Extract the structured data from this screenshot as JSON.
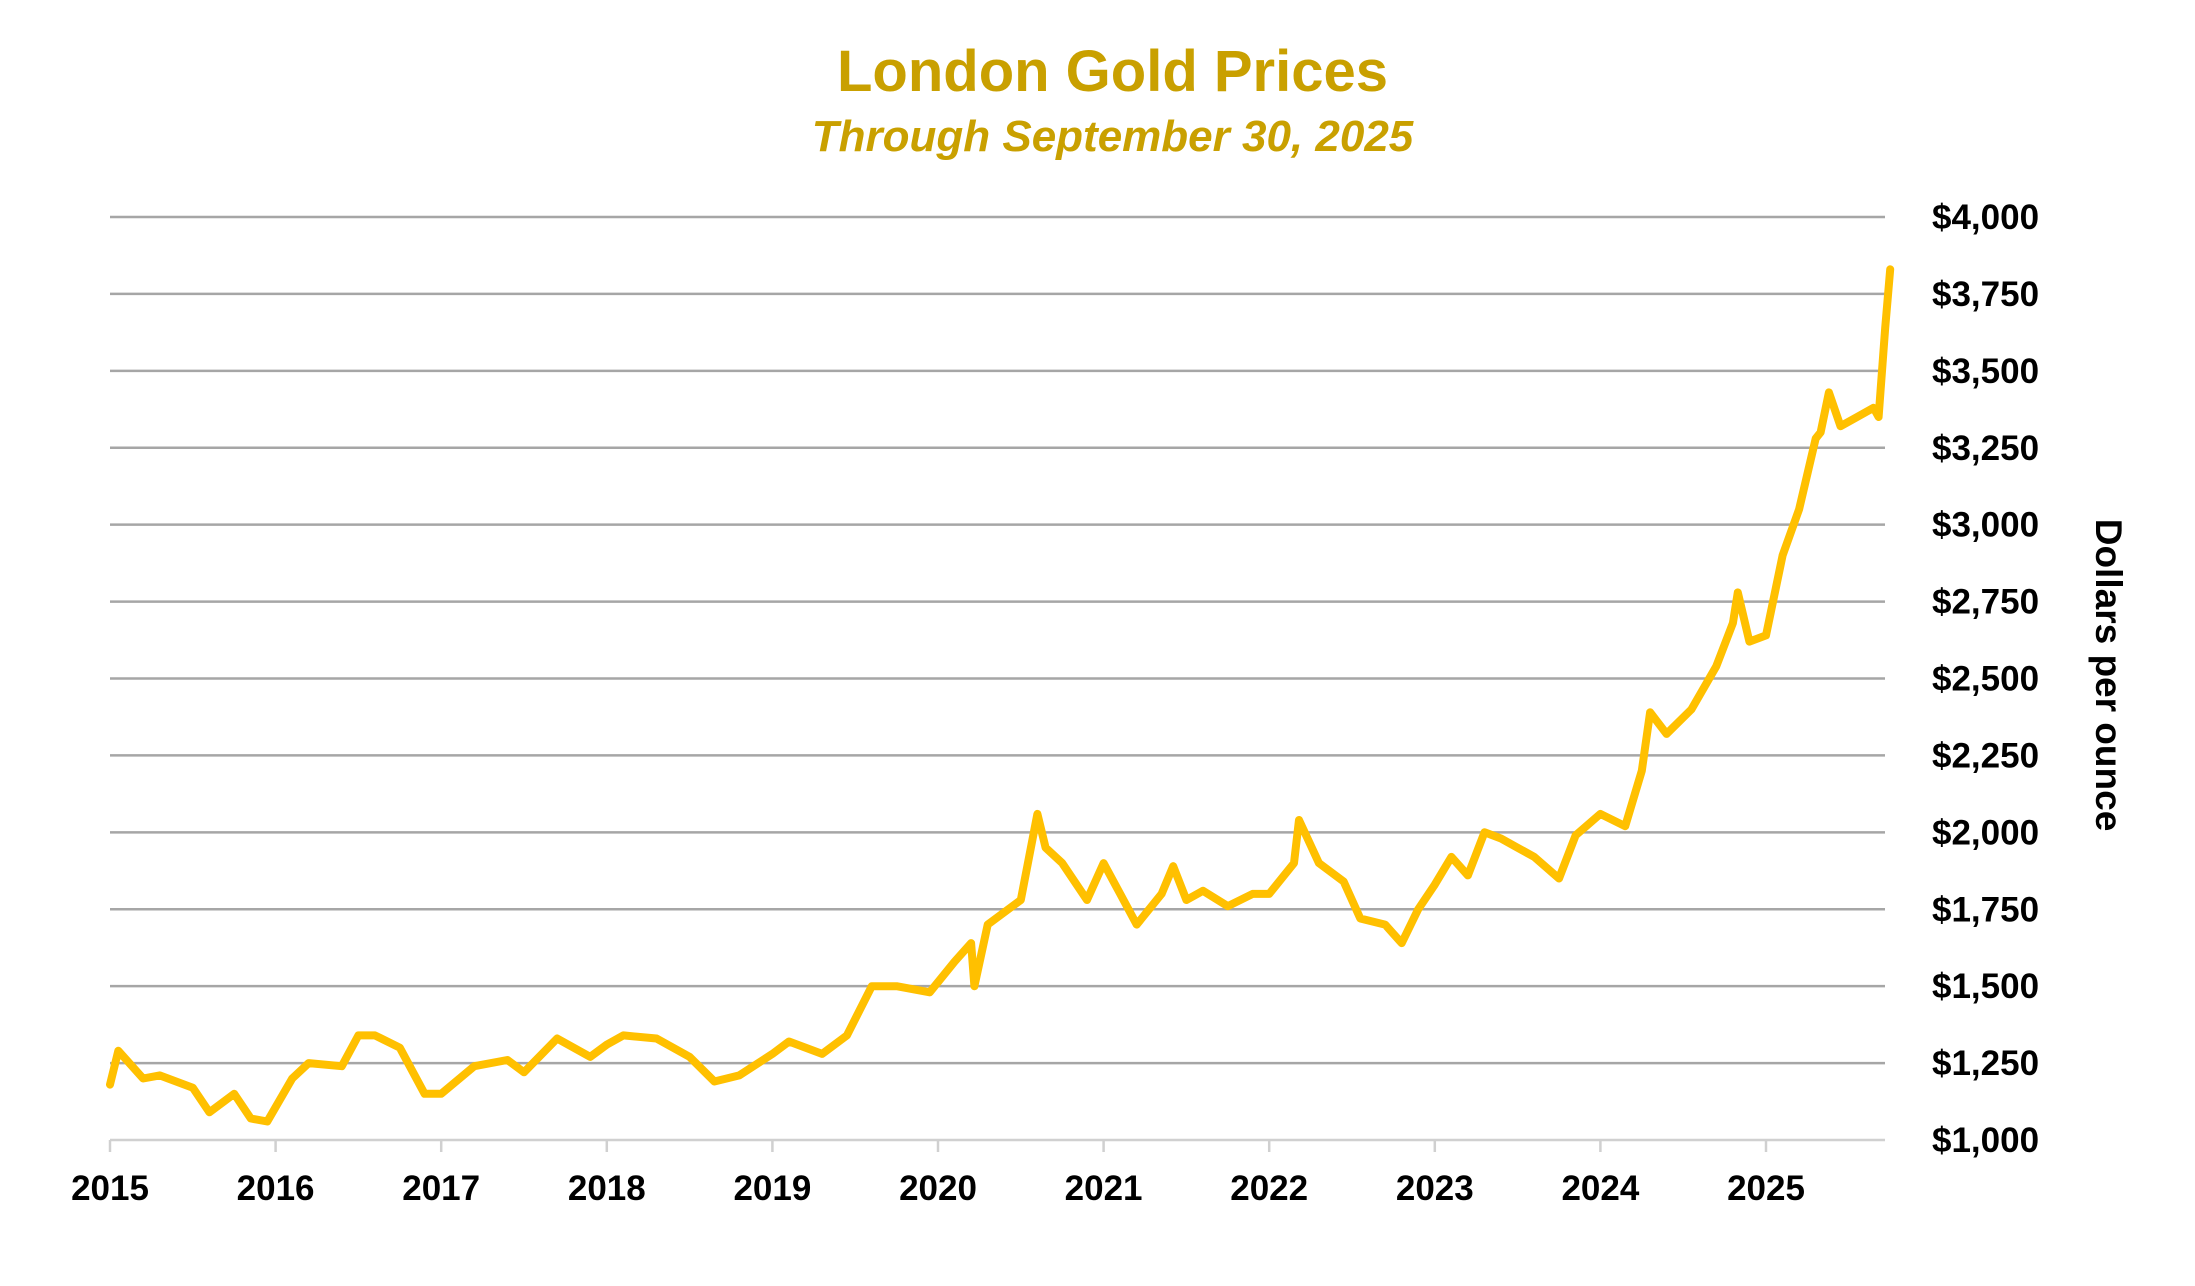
{
  "chart_data": {
    "type": "line",
    "title": "London Gold Prices",
    "subtitle": "Through September 30, 2025",
    "ylabel": "Dollars per ounce",
    "xlabel": "",
    "xlim": [
      2015,
      2025.75
    ],
    "ylim": [
      1000,
      4000
    ],
    "y_axis_side": "right",
    "grid": "horizontal",
    "legend": "none",
    "line_color": "#FFC000",
    "title_color": "#C9A000",
    "x_ticks": [
      "2015",
      "2016",
      "2017",
      "2018",
      "2019",
      "2020",
      "2021",
      "2022",
      "2023",
      "2024",
      "2025"
    ],
    "y_ticks": [
      "$1,000",
      "$1,250",
      "$1,500",
      "$1,750",
      "$2,000",
      "$2,250",
      "$2,500",
      "$2,750",
      "$3,000",
      "$3,250",
      "$3,500",
      "$3,750",
      "$4,000"
    ],
    "series": [
      {
        "x": [
          2015.0,
          2015.05,
          2015.2,
          2015.3,
          2015.5,
          2015.6,
          2015.75,
          2015.85,
          2015.95,
          2016.1,
          2016.2,
          2016.4,
          2016.5,
          2016.6,
          2016.75,
          2016.9,
          2017.0,
          2017.2,
          2017.4,
          2017.5,
          2017.7,
          2017.9,
          2018.0,
          2018.1,
          2018.3,
          2018.5,
          2018.65,
          2018.8,
          2019.0,
          2019.1,
          2019.3,
          2019.45,
          2019.6,
          2019.75,
          2019.95,
          2020.1,
          2020.2,
          2020.22,
          2020.3,
          2020.5,
          2020.6,
          2020.65,
          2020.75,
          2020.9,
          2021.0,
          2021.1,
          2021.2,
          2021.35,
          2021.42,
          2021.5,
          2021.6,
          2021.75,
          2021.9,
          2022.0,
          2022.15,
          2022.18,
          2022.3,
          2022.45,
          2022.55,
          2022.7,
          2022.8,
          2022.9,
          2023.0,
          2023.1,
          2023.2,
          2023.3,
          2023.4,
          2023.5,
          2023.6,
          2023.75,
          2023.85,
          2024.0,
          2024.15,
          2024.25,
          2024.3,
          2024.4,
          2024.55,
          2024.7,
          2024.8,
          2024.83,
          2024.9,
          2025.0,
          2025.1,
          2025.2,
          2025.3,
          2025.33,
          2025.38,
          2025.45,
          2025.55,
          2025.65,
          2025.68,
          2025.72,
          2025.75
        ],
        "y": [
          1180,
          1290,
          1200,
          1210,
          1170,
          1090,
          1150,
          1070,
          1060,
          1200,
          1250,
          1240,
          1340,
          1340,
          1300,
          1150,
          1150,
          1240,
          1260,
          1220,
          1330,
          1270,
          1310,
          1340,
          1330,
          1270,
          1190,
          1210,
          1280,
          1320,
          1280,
          1340,
          1500,
          1500,
          1480,
          1580,
          1640,
          1500,
          1700,
          1780,
          2060,
          1950,
          1900,
          1780,
          1900,
          1800,
          1700,
          1800,
          1890,
          1780,
          1810,
          1760,
          1800,
          1800,
          1900,
          2040,
          1900,
          1840,
          1720,
          1700,
          1640,
          1750,
          1830,
          1920,
          1860,
          2000,
          1980,
          1950,
          1920,
          1850,
          1990,
          2060,
          2020,
          2200,
          2390,
          2320,
          2400,
          2540,
          2680,
          2780,
          2620,
          2640,
          2900,
          3050,
          3280,
          3300,
          3430,
          3320,
          3350,
          3380,
          3350,
          3640,
          3830
        ]
      }
    ]
  }
}
